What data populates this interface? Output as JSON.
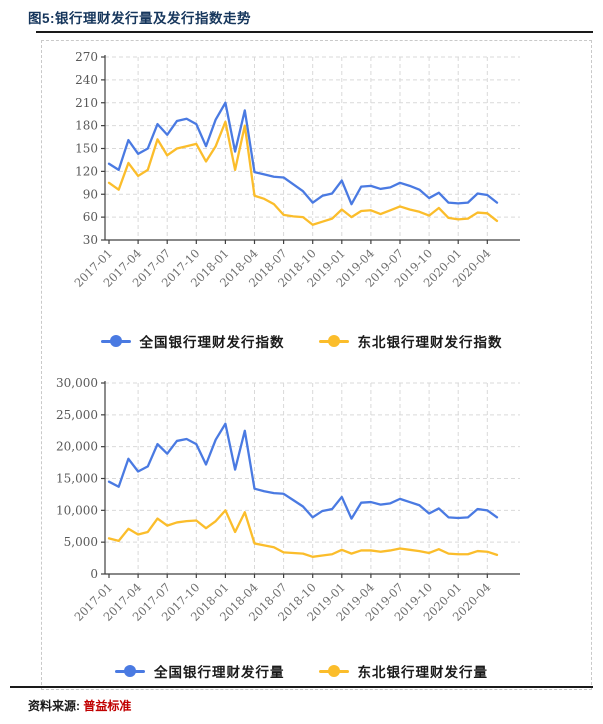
{
  "figure": {
    "title": "图5:银行理财发行量及发行指数走势",
    "source_label": "资料来源:",
    "source_value": "普益标准"
  },
  "colors": {
    "national_series": "#4A7AE2",
    "northeast_series": "#FBBD2B",
    "title_text": "#16365C",
    "source_accent": "#C00000",
    "grid_line": "#D9D9D9",
    "axis_line": "#404040",
    "tick_text": "#666666"
  },
  "chart_data": [
    {
      "type": "line",
      "x": [
        "2017-01",
        "2017-02",
        "2017-03",
        "2017-04",
        "2017-05",
        "2017-06",
        "2017-07",
        "2017-08",
        "2017-09",
        "2017-10",
        "2017-11",
        "2017-12",
        "2018-01",
        "2018-02",
        "2018-03",
        "2018-04",
        "2018-05",
        "2018-06",
        "2018-07",
        "2018-08",
        "2018-09",
        "2018-10",
        "2018-11",
        "2018-12",
        "2019-01",
        "2019-02",
        "2019-03",
        "2019-04",
        "2019-05",
        "2019-06",
        "2019-07",
        "2019-08",
        "2019-09",
        "2019-10",
        "2019-11",
        "2019-12",
        "2020-01",
        "2020-02",
        "2020-03",
        "2020-04",
        "2020-05"
      ],
      "x_tick_every": 3,
      "ylim": [
        30,
        270
      ],
      "ytick_values": [
        30,
        60,
        90,
        120,
        150,
        180,
        210,
        240,
        270
      ],
      "ytick_labels": [
        "30",
        "60",
        "90",
        "120",
        "150",
        "180",
        "210",
        "240",
        "270"
      ],
      "grid": true,
      "legend_position": "bottom",
      "series": [
        {
          "name": "全国银行理财发行指数",
          "color": "#4A7AE2",
          "values": [
            130,
            122,
            161,
            143,
            150,
            182,
            168,
            186,
            189,
            182,
            153,
            188,
            210,
            146,
            200,
            119,
            116,
            113,
            112,
            103,
            94,
            79,
            88,
            91,
            108,
            77,
            100,
            101,
            97,
            99,
            105,
            101,
            96,
            85,
            92,
            79,
            78,
            79,
            91,
            89,
            79
          ]
        },
        {
          "name": "东北银行理财发行指数",
          "color": "#FBBD2B",
          "values": [
            105,
            96,
            131,
            114,
            122,
            162,
            141,
            150,
            153,
            156,
            133,
            153,
            185,
            122,
            180,
            88,
            84,
            77,
            63,
            61,
            60,
            50,
            54,
            58,
            70,
            60,
            68,
            69,
            64,
            69,
            74,
            70,
            67,
            62,
            72,
            59,
            57,
            58,
            66,
            65,
            55
          ]
        }
      ]
    },
    {
      "type": "line",
      "x": [
        "2017-01",
        "2017-02",
        "2017-03",
        "2017-04",
        "2017-05",
        "2017-06",
        "2017-07",
        "2017-08",
        "2017-09",
        "2017-10",
        "2017-11",
        "2017-12",
        "2018-01",
        "2018-02",
        "2018-03",
        "2018-04",
        "2018-05",
        "2018-06",
        "2018-07",
        "2018-08",
        "2018-09",
        "2018-10",
        "2018-11",
        "2018-12",
        "2019-01",
        "2019-02",
        "2019-03",
        "2019-04",
        "2019-05",
        "2019-06",
        "2019-07",
        "2019-08",
        "2019-09",
        "2019-10",
        "2019-11",
        "2019-12",
        "2020-01",
        "2020-02",
        "2020-03",
        "2020-04",
        "2020-05"
      ],
      "x_tick_every": 3,
      "ylim": [
        0,
        30000
      ],
      "ytick_values": [
        0,
        5000,
        10000,
        15000,
        20000,
        25000,
        30000
      ],
      "ytick_labels": [
        "0",
        "5,000",
        "10,000",
        "15,000",
        "20,000",
        "25,000",
        "30,000"
      ],
      "grid": true,
      "legend_position": "bottom",
      "series": [
        {
          "name": "全国银行理财发行量",
          "color": "#4A7AE2",
          "values": [
            14500,
            13700,
            18100,
            16100,
            16900,
            20400,
            18900,
            20900,
            21200,
            20400,
            17200,
            21100,
            23600,
            16400,
            22500,
            13400,
            13000,
            12700,
            12600,
            11600,
            10600,
            8900,
            9900,
            10200,
            12100,
            8700,
            11200,
            11300,
            10900,
            11100,
            11800,
            11300,
            10800,
            9500,
            10300,
            8900,
            8800,
            8900,
            10200,
            10000,
            8900
          ]
        },
        {
          "name": "东北银行理财发行量",
          "color": "#FBBD2B",
          "values": [
            5600,
            5200,
            7100,
            6200,
            6600,
            8700,
            7600,
            8100,
            8300,
            8400,
            7200,
            8300,
            10000,
            6600,
            9700,
            4800,
            4500,
            4200,
            3400,
            3300,
            3200,
            2700,
            2900,
            3100,
            3800,
            3200,
            3700,
            3700,
            3500,
            3700,
            4000,
            3800,
            3600,
            3300,
            3900,
            3200,
            3100,
            3100,
            3600,
            3500,
            3000
          ]
        }
      ]
    }
  ]
}
